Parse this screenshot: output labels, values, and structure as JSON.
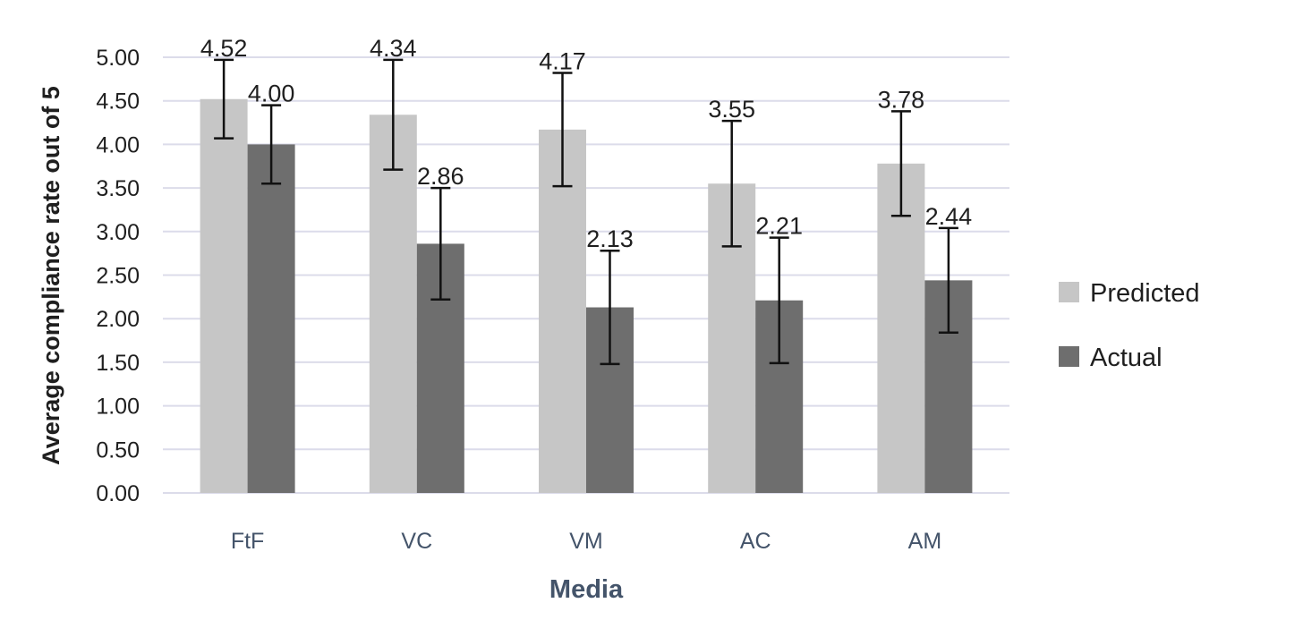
{
  "chart_data": {
    "type": "bar",
    "title": "",
    "xlabel": "Media",
    "ylabel": "Average compliance rate out of 5",
    "categories": [
      "FtF",
      "VC",
      "VM",
      "AC",
      "AM"
    ],
    "series": [
      {
        "name": "Predicted",
        "color": "#c6c6c6",
        "values": [
          4.52,
          4.34,
          4.17,
          3.55,
          3.78
        ],
        "labels": [
          "4.52",
          "4.34",
          "4.17",
          "3.55",
          "3.78"
        ],
        "error_low": [
          4.07,
          3.71,
          3.52,
          2.83,
          3.18
        ],
        "error_high": [
          4.97,
          4.97,
          4.82,
          4.27,
          4.38
        ]
      },
      {
        "name": "Actual",
        "color": "#6e6e6e",
        "values": [
          4.0,
          2.86,
          2.13,
          2.21,
          2.44
        ],
        "labels": [
          "4.00",
          "2.86",
          "2.13",
          "2.21",
          "2.44"
        ],
        "error_low": [
          3.55,
          2.22,
          1.48,
          1.49,
          1.84
        ],
        "error_high": [
          4.45,
          3.5,
          2.78,
          2.93,
          3.04
        ]
      }
    ],
    "ylim": [
      0,
      5
    ],
    "yticks": [
      "0.00",
      "0.50",
      "1.00",
      "1.50",
      "2.00",
      "2.50",
      "3.00",
      "3.50",
      "4.00",
      "4.50",
      "5.00"
    ],
    "grid": true,
    "legend": "right"
  }
}
